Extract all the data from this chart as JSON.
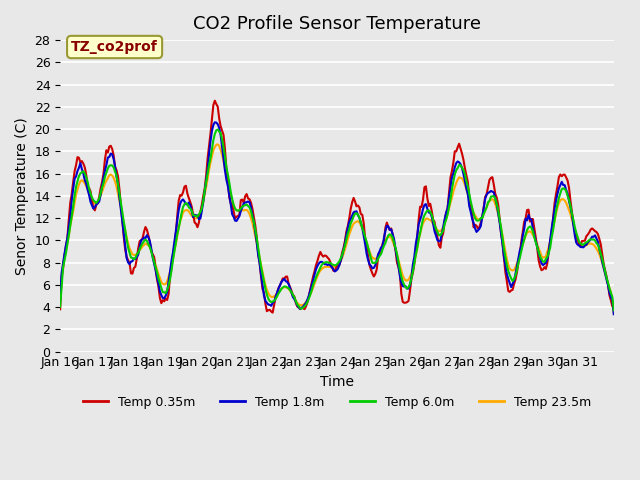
{
  "title": "CO2 Profile Sensor Temperature",
  "xlabel": "Time",
  "ylabel": "Senor Temperature (C)",
  "ylim": [
    0,
    28
  ],
  "yticks": [
    0,
    2,
    4,
    6,
    8,
    10,
    12,
    14,
    16,
    18,
    20,
    22,
    24,
    26,
    28
  ],
  "xtick_labels": [
    "Jan 16",
    "Jan 17",
    "Jan 18",
    "Jan 19",
    "Jan 20",
    "Jan 21",
    "Jan 22",
    "Jan 23",
    "Jan 24",
    "Jan 25",
    "Jan 26",
    "Jan 27",
    "Jan 28",
    "Jan 29",
    "Jan 30",
    "Jan 31"
  ],
  "series": [
    {
      "label": "Temp 0.35m",
      "color": "#cc0000",
      "lw": 1.5
    },
    {
      "label": "Temp 1.8m",
      "color": "#0000cc",
      "lw": 1.5
    },
    {
      "label": "Temp 6.0m",
      "color": "#00cc00",
      "lw": 1.5
    },
    {
      "label": "Temp 23.5m",
      "color": "#ffaa00",
      "lw": 1.5
    }
  ],
  "annotation_text": "TZ_co2prof",
  "annotation_color": "#880000",
  "annotation_bg": "#ffffcc",
  "bg_color": "#e8e8e8",
  "plot_bg": "#e8e8e8",
  "grid_color": "#ffffff",
  "title_fontsize": 13,
  "axis_fontsize": 10,
  "tick_fontsize": 9
}
